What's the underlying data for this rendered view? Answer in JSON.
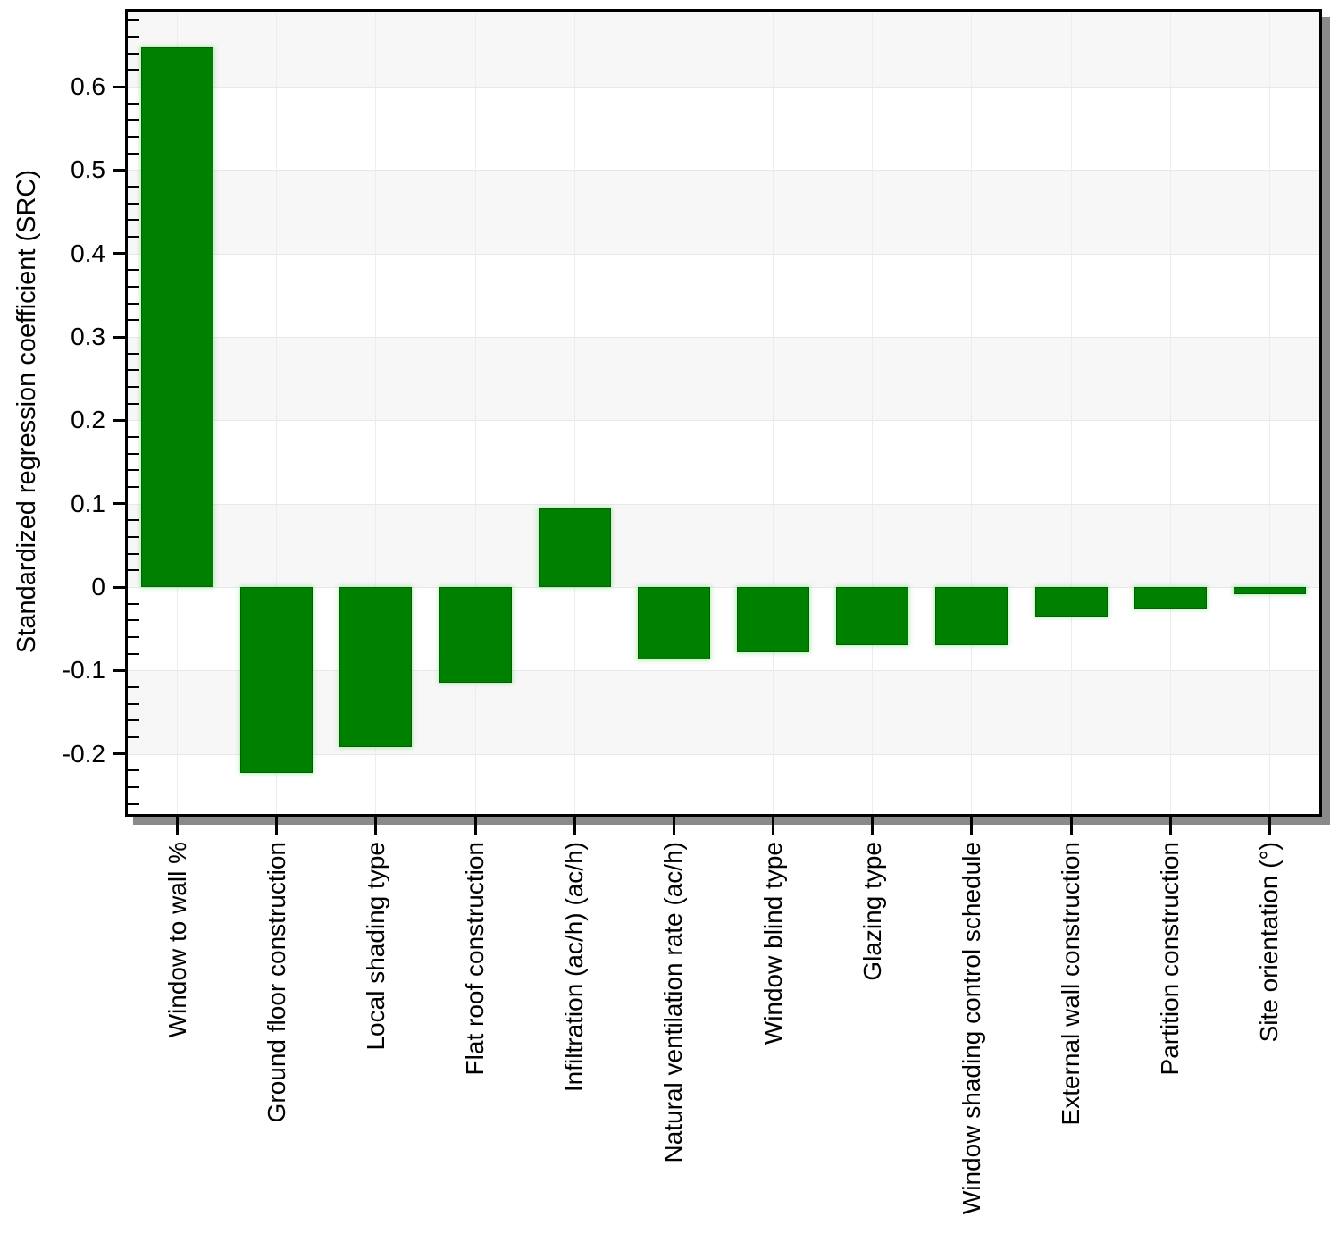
{
  "chart_data": {
    "type": "bar",
    "title": "",
    "xlabel": "",
    "ylabel": "Standardized regression coefficient (SRC)",
    "categories": [
      "Window to wall %",
      "Ground floor construction",
      "Local shading type",
      "Flat roof construction",
      "Infiltration (ac/h) (ac/h)",
      "Natural ventilation rate (ac/h)",
      "Window blind type",
      "Glazing type",
      "Window shading control schedule",
      "External wall construction",
      "Partition construction",
      "Site orientation (°)"
    ],
    "values": [
      0.647,
      -0.223,
      -0.192,
      -0.114,
      0.094,
      -0.087,
      -0.078,
      -0.069,
      -0.07,
      -0.035,
      -0.026,
      -0.009
    ],
    "ylim": [
      -0.272,
      0.69
    ],
    "y_tick_labels": [
      "0.6",
      "0.5",
      "0.4",
      "0.3",
      "0.2",
      "0.1",
      "0",
      "-0.1",
      "-0.2"
    ],
    "y_major_step": 0.1,
    "y_minor_step": 0.02,
    "grid": true,
    "legend": "none",
    "colors": {
      "bar_fill": "#008000",
      "bar_border": "#006200",
      "bar_halo": "rgba(135,225,135,0.65)",
      "band_gray": "#f7f7f7",
      "hgrid": "#e8e8e8",
      "vgrid": "#ececec",
      "axis": "#000000",
      "shadow": "#8a8a8a",
      "background": "#ffffff",
      "text": "#000000"
    }
  }
}
